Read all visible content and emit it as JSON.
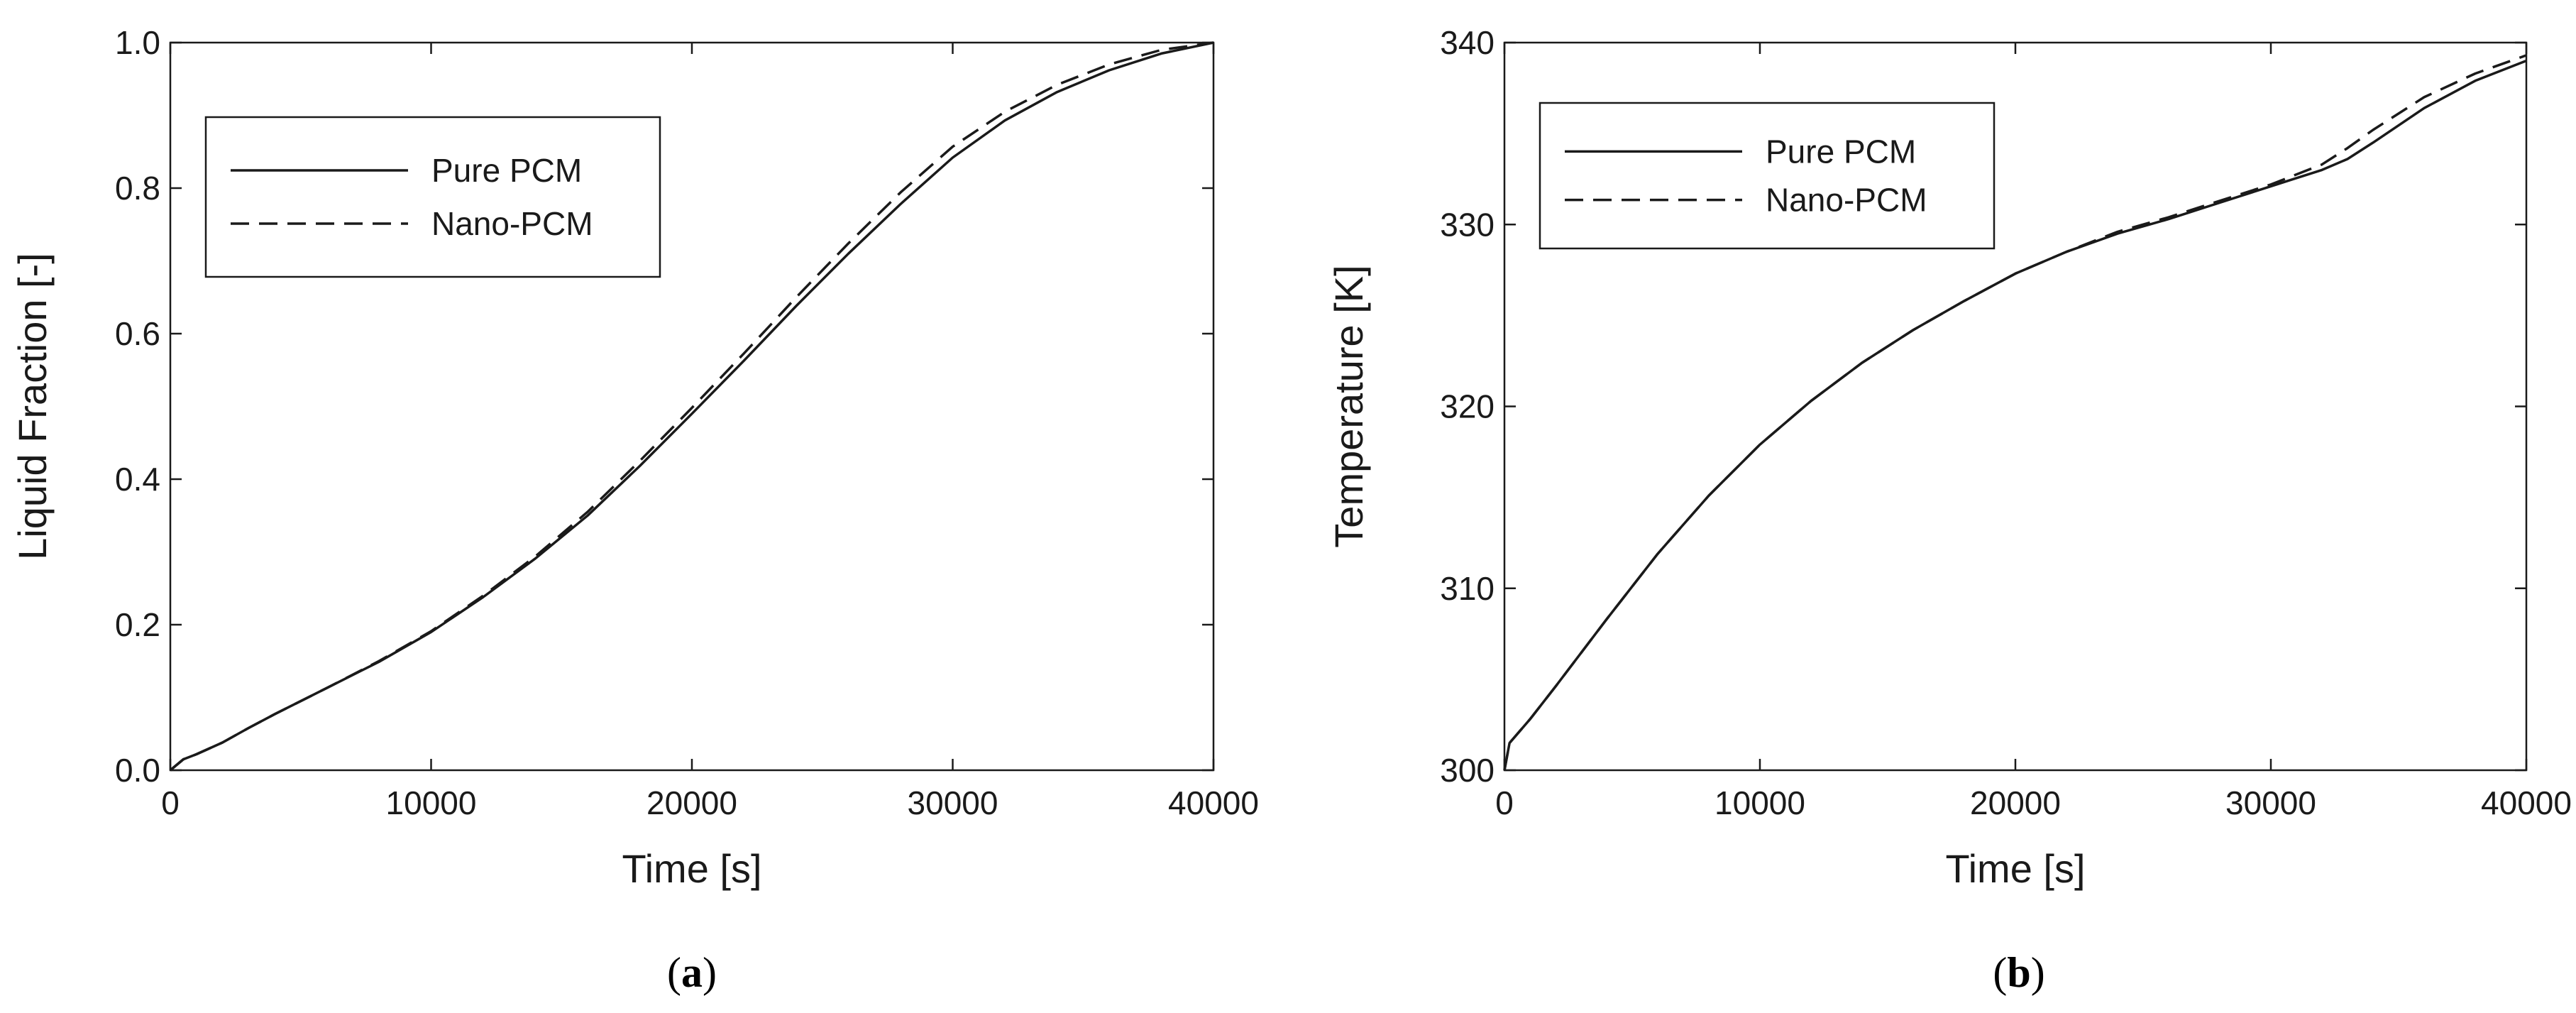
{
  "colors": {
    "line": "#1a1a1a",
    "frame": "#1a1a1a",
    "background": "#ffffff"
  },
  "chart_data": [
    {
      "type": "line",
      "panel_label": {
        "open": "(",
        "letter": "a",
        "close": ")"
      },
      "xlabel": "Time [s]",
      "ylabel": "Liquid Fraction [-]",
      "xlim": [
        0,
        40000
      ],
      "ylim": [
        0,
        1.0
      ],
      "xticks": [
        0,
        10000,
        20000,
        30000,
        40000
      ],
      "xtick_labels": [
        "0",
        "10000",
        "20000",
        "30000",
        "40000"
      ],
      "yticks": [
        0.0,
        0.2,
        0.4,
        0.6,
        0.8,
        1.0
      ],
      "ytick_labels": [
        "0.0",
        "0.2",
        "0.4",
        "0.6",
        "0.8",
        "1.0"
      ],
      "grid": false,
      "legend_position": "top-left",
      "series": [
        {
          "name": "Pure PCM",
          "style": "solid",
          "x": [
            0,
            500,
            1000,
            2000,
            3000,
            4000,
            6000,
            8000,
            10000,
            12000,
            14000,
            16000,
            18000,
            20000,
            22000,
            24000,
            26000,
            28000,
            30000,
            32000,
            34000,
            36000,
            38000,
            40000
          ],
          "y": [
            0.0,
            0.015,
            0.022,
            0.038,
            0.058,
            0.077,
            0.113,
            0.149,
            0.19,
            0.238,
            0.291,
            0.35,
            0.418,
            0.49,
            0.563,
            0.638,
            0.71,
            0.778,
            0.842,
            0.893,
            0.932,
            0.962,
            0.985,
            1.0
          ]
        },
        {
          "name": "Nano-PCM",
          "style": "dashed",
          "x": [
            0,
            500,
            1000,
            2000,
            3000,
            4000,
            6000,
            8000,
            10000,
            12000,
            14000,
            16000,
            18000,
            20000,
            22000,
            24000,
            26000,
            28000,
            30000,
            32000,
            34000,
            36000,
            38000,
            40000
          ],
          "y": [
            0.0,
            0.015,
            0.022,
            0.038,
            0.058,
            0.077,
            0.113,
            0.15,
            0.191,
            0.24,
            0.294,
            0.355,
            0.425,
            0.498,
            0.573,
            0.65,
            0.724,
            0.794,
            0.857,
            0.905,
            0.942,
            0.97,
            0.99,
            1.0
          ]
        }
      ]
    },
    {
      "type": "line",
      "panel_label": {
        "open": "(",
        "letter": "b",
        "close": ")"
      },
      "xlabel": "Time [s]",
      "ylabel": "Temperature [K]",
      "xlim": [
        0,
        40000
      ],
      "ylim": [
        300,
        340
      ],
      "xticks": [
        0,
        10000,
        20000,
        30000,
        40000
      ],
      "xtick_labels": [
        "0",
        "10000",
        "20000",
        "30000",
        "40000"
      ],
      "yticks": [
        300,
        310,
        320,
        330,
        340
      ],
      "ytick_labels": [
        "300",
        "310",
        "320",
        "330",
        "340"
      ],
      "grid": false,
      "legend_position": "top-left",
      "series": [
        {
          "name": "Pure PCM",
          "style": "solid",
          "x": [
            0,
            200,
            1000,
            2000,
            4000,
            6000,
            8000,
            10000,
            12000,
            14000,
            16000,
            18000,
            20000,
            22000,
            24000,
            26000,
            28000,
            30000,
            32000,
            33000,
            34000,
            36000,
            38000,
            40000
          ],
          "y": [
            300,
            301.5,
            302.8,
            304.6,
            308.3,
            311.9,
            315.1,
            317.9,
            320.3,
            322.4,
            324.2,
            325.8,
            327.3,
            328.5,
            329.5,
            330.3,
            331.2,
            332.1,
            333.0,
            333.6,
            334.5,
            336.4,
            337.9,
            339.0
          ]
        },
        {
          "name": "Nano-PCM",
          "style": "dashed",
          "x": [
            0,
            200,
            1000,
            2000,
            4000,
            6000,
            8000,
            10000,
            12000,
            14000,
            16000,
            18000,
            20000,
            22000,
            24000,
            26000,
            28000,
            30000,
            32000,
            33000,
            34000,
            36000,
            38000,
            40000
          ],
          "y": [
            300,
            301.5,
            302.8,
            304.6,
            308.3,
            311.9,
            315.1,
            317.9,
            320.3,
            322.4,
            324.2,
            325.8,
            327.3,
            328.5,
            329.6,
            330.4,
            331.3,
            332.2,
            333.3,
            334.2,
            335.2,
            337.0,
            338.3,
            339.3
          ]
        }
      ]
    }
  ]
}
